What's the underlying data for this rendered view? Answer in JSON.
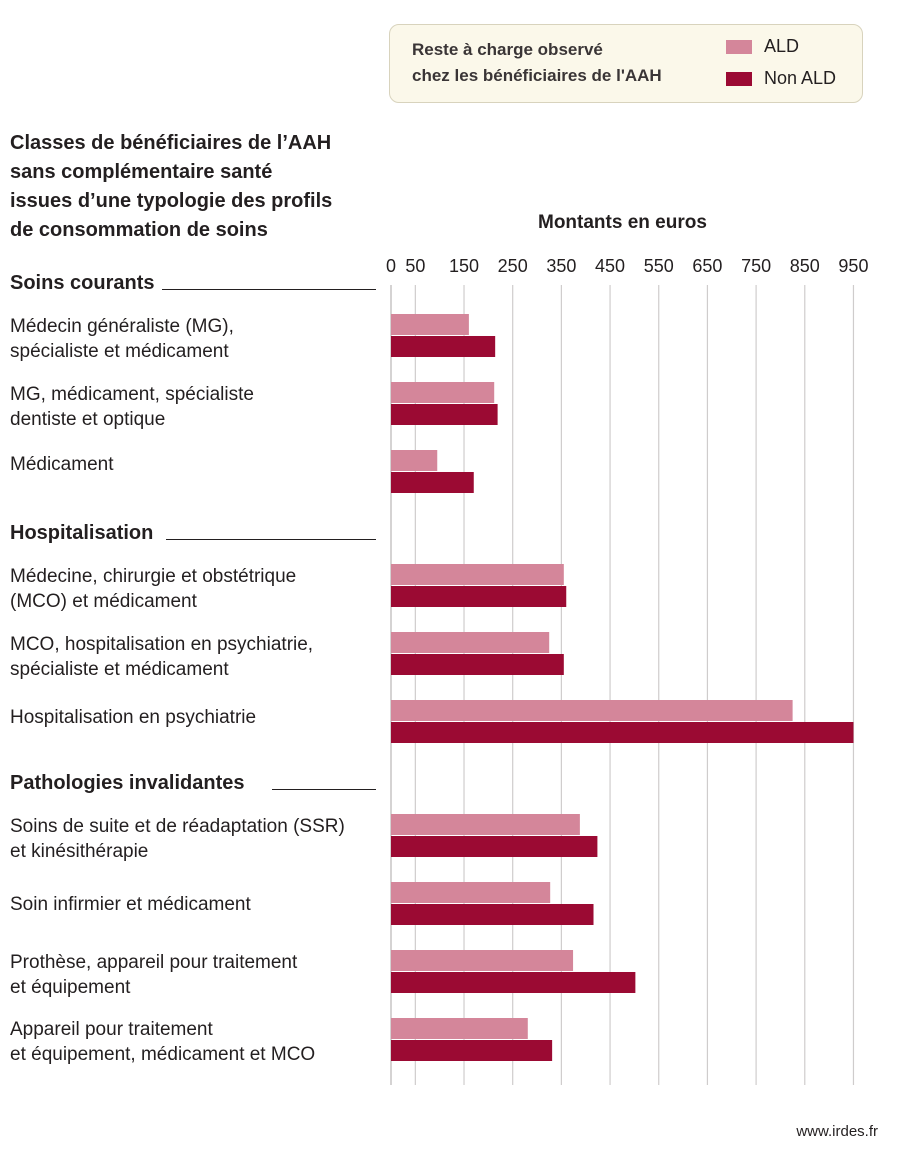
{
  "legend": {
    "title_line1": "Reste à charge observé",
    "title_line2": "chez les bénéficiaires de l'AAH",
    "items": [
      {
        "label": "ALD",
        "color": "#d4869a"
      },
      {
        "label": "Non ALD",
        "color": "#9b0a33"
      }
    ]
  },
  "title_lines": [
    "Classes de bénéficiaires de l’AAH",
    "sans complémentaire santé",
    "issues d’une typologie des profils",
    "de consommation de soins"
  ],
  "sections": [
    {
      "label": "Soins courants"
    },
    {
      "label": "Hospitalisation"
    },
    {
      "label": "Pathologies invalidantes"
    }
  ],
  "categories": [
    {
      "line1": "Médecin généraliste (MG),",
      "line2": "spécialiste et médicament"
    },
    {
      "line1": "MG, médicament, spécialiste",
      "line2": "dentiste et optique"
    },
    {
      "line1": "Médicament",
      "line2": ""
    },
    {
      "line1": "Médecine, chirurgie et obstétrique",
      "line2": "(MCO) et médicament"
    },
    {
      "line1": "MCO, hospitalisation en psychiatrie,",
      "line2": "spécialiste et médicament"
    },
    {
      "line1": "Hospitalisation en psychiatrie",
      "line2": ""
    },
    {
      "line1": "Soins de suite et de réadaptation (SSR)",
      "line2": "et kinésithérapie"
    },
    {
      "line1": "Soin infirmier et médicament",
      "line2": ""
    },
    {
      "line1": "Prothèse, appareil pour traitement",
      "line2": "et équipement"
    },
    {
      "line1": "Appareil pour traitement",
      "line2": "et équipement, médicament et MCO"
    }
  ],
  "footer": "www.irdes.fr",
  "chart_data": {
    "type": "bar",
    "orientation": "horizontal",
    "xlabel": "Montants en euros",
    "xticks": [
      "0",
      "50",
      "150",
      "250",
      "350",
      "450",
      "550",
      "650",
      "750",
      "850",
      "950"
    ],
    "xlim": [
      0,
      950
    ],
    "grid": true,
    "legend_position": "top-right",
    "series": [
      {
        "name": "ALD",
        "color": "#d4869a",
        "values": [
          160,
          212,
          95,
          355,
          325,
          825,
          388,
          327,
          374,
          281
        ]
      },
      {
        "name": "Non ALD",
        "color": "#9b0a33",
        "values": [
          214,
          219,
          170,
          360,
          355,
          950,
          424,
          416,
          502,
          331
        ]
      }
    ]
  }
}
